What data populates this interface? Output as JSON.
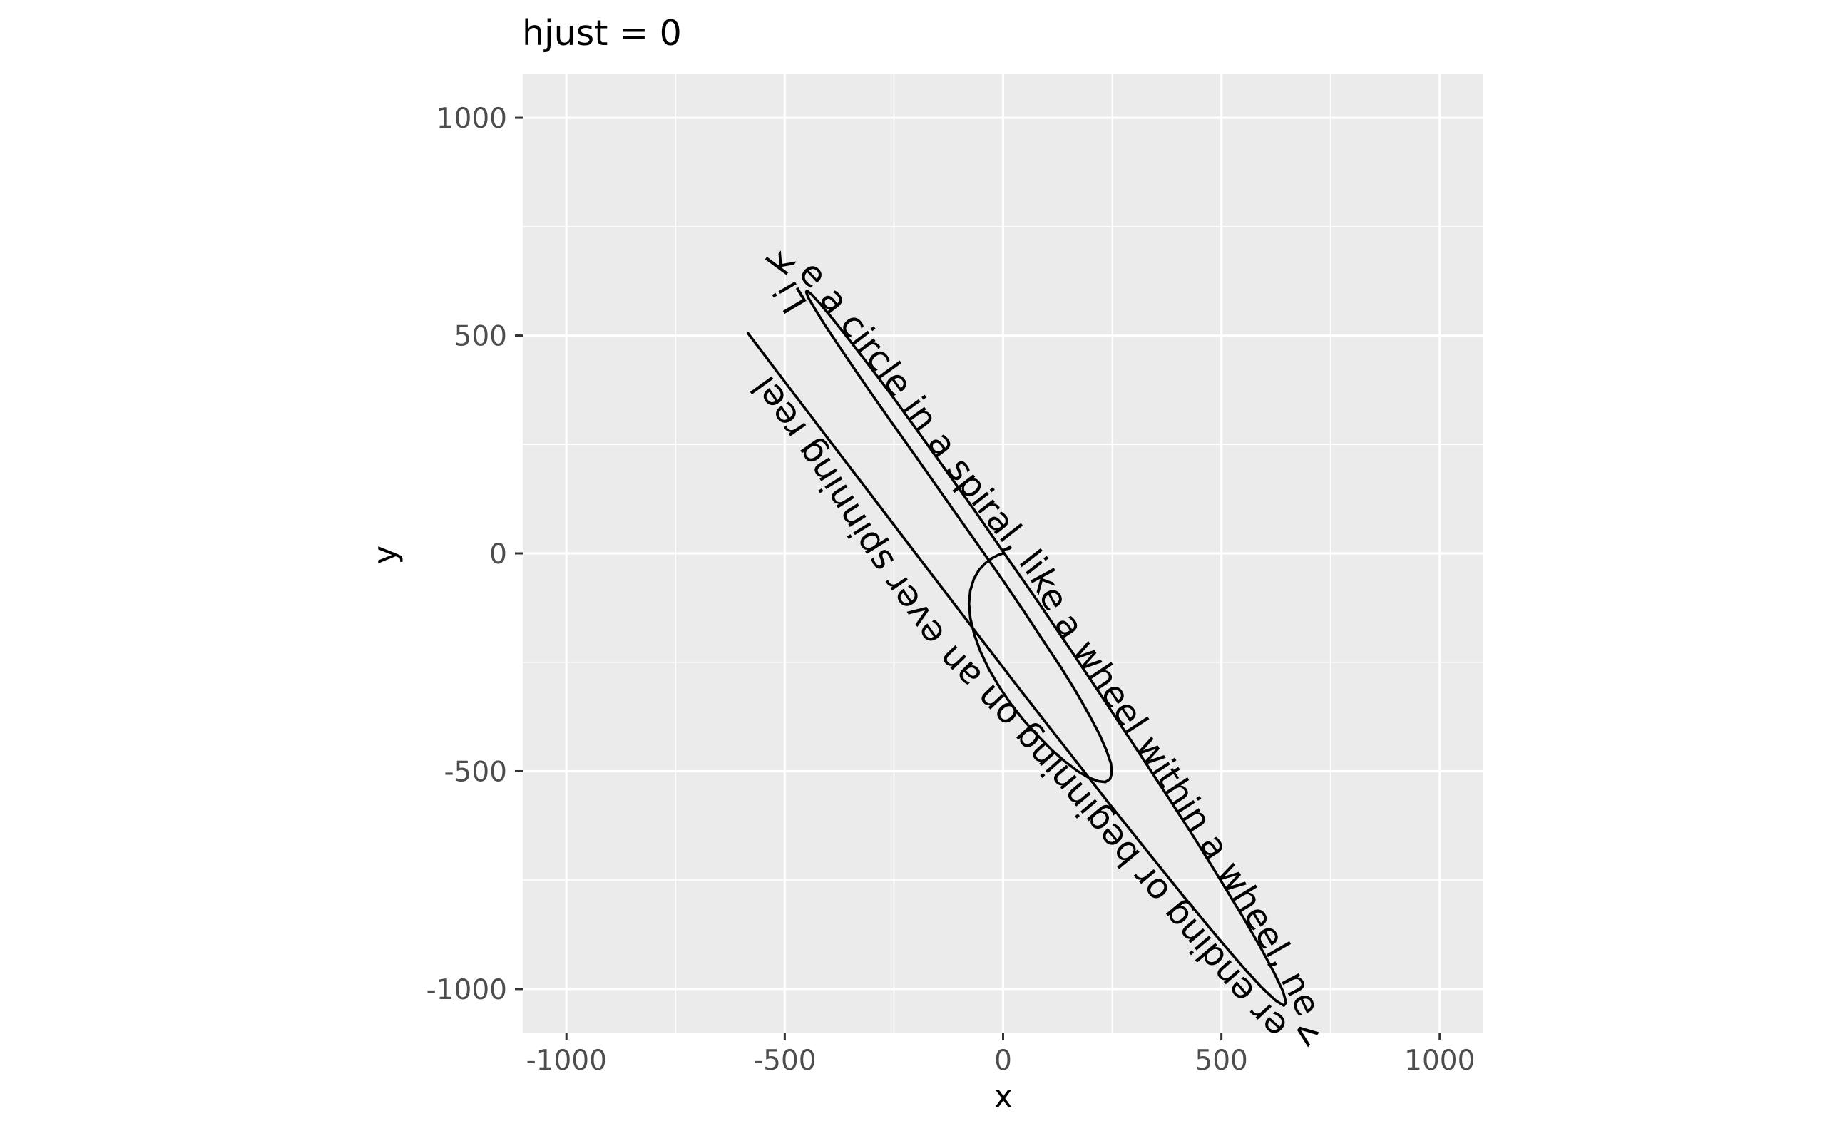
{
  "chart_data": {
    "type": "line",
    "title": "hjust = 0",
    "xlabel": "x",
    "ylabel": "y",
    "xlim": [
      -1100,
      1100
    ],
    "ylim": [
      -1100,
      1100
    ],
    "x_ticks": [
      {
        "value": -1000,
        "label": "-1000"
      },
      {
        "value": -500,
        "label": "-500"
      },
      {
        "value": 0,
        "label": "0"
      },
      {
        "value": 500,
        "label": "500"
      },
      {
        "value": 1000,
        "label": "1000"
      }
    ],
    "y_ticks": [
      {
        "value": -1000,
        "label": "-1000"
      },
      {
        "value": -500,
        "label": "-500"
      },
      {
        "value": 0,
        "label": "0"
      },
      {
        "value": 500,
        "label": "500"
      },
      {
        "value": 1000,
        "label": "1000"
      }
    ],
    "x_minor_breaks": [
      -750,
      -250,
      250,
      750
    ],
    "y_minor_breaks": [
      -750,
      -250,
      250,
      750
    ],
    "grid": true,
    "legend": "none",
    "colors": {
      "panel": "#ebebeb",
      "grid": "#ffffff",
      "line": "#000000",
      "text": "#000000",
      "tick_text": "#4d4d4d"
    },
    "series": [
      {
        "x": [
          0,
          -3,
          -12,
          -25,
          -40,
          -55,
          -67,
          -75,
          -78,
          -75,
          -66,
          -52,
          -33,
          -9,
          18,
          48,
          80,
          111,
          142,
          171,
          196,
          218,
          234,
          245,
          249,
          247,
          237,
          221,
          198,
          169,
          134,
          93,
          49,
          1,
          -50,
          -102,
          -154,
          -205,
          -255,
          -301,
          -342,
          -378,
          -408,
          -430,
          -445,
          -451,
          -449,
          -438,
          -418,
          -390,
          -353,
          -308,
          -256,
          -198,
          -134,
          -65,
          7,
          82,
          157,
          232,
          305,
          375,
          440,
          498,
          549,
          590,
          621,
          641,
          648,
          643,
          625,
          593,
          548,
          490,
          419,
          336,
          242,
          138,
          26,
          -92,
          -214,
          -338,
          -462,
          -584
        ],
        "y": [
          0,
          -1,
          -4,
          -11,
          -22,
          -38,
          -59,
          -85,
          -115,
          -149,
          -186,
          -225,
          -265,
          -306,
          -346,
          -384,
          -419,
          -451,
          -478,
          -500,
          -515,
          -523,
          -525,
          -518,
          -504,
          -482,
          -453,
          -416,
          -372,
          -321,
          -264,
          -202,
          -135,
          -64,
          9,
          83,
          157,
          230,
          300,
          366,
          426,
          479,
          524,
          560,
          585,
          600,
          603,
          594,
          572,
          538,
          491,
          433,
          364,
          284,
          195,
          98,
          -6,
          -114,
          -225,
          -337,
          -448,
          -555,
          -656,
          -750,
          -834,
          -905,
          -963,
          -1005,
          -1031,
          -1038,
          -1027,
          -997,
          -948,
          -880,
          -794,
          -691,
          -573,
          -440,
          -296,
          -142,
          18,
          181,
          344,
          505
        ],
        "text": "Like a circle in a spiral, like a wheel within a wheel, never ending or beginning on an ever spinning reel"
      }
    ]
  }
}
